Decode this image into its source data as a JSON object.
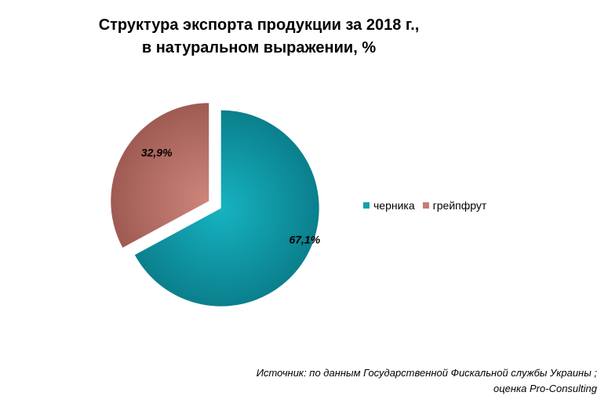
{
  "chart_data": {
    "type": "pie",
    "title_lines": [
      "Структура  экспорта продукции за 2018 г.,",
      "в натуральном выражении, %"
    ],
    "slices": [
      {
        "name": "черника",
        "value": 67.1,
        "label": "67,1%",
        "color": "#0fa1b0"
      },
      {
        "name": "грейпфрут",
        "value": 32.9,
        "label": "32,9%",
        "color": "#c87c72"
      }
    ],
    "legend_position": "right"
  },
  "source": {
    "line1": "Источник: по данным Государственной Фискальной службы Украины ;",
    "line2": "оценка Pro-Consulting"
  }
}
